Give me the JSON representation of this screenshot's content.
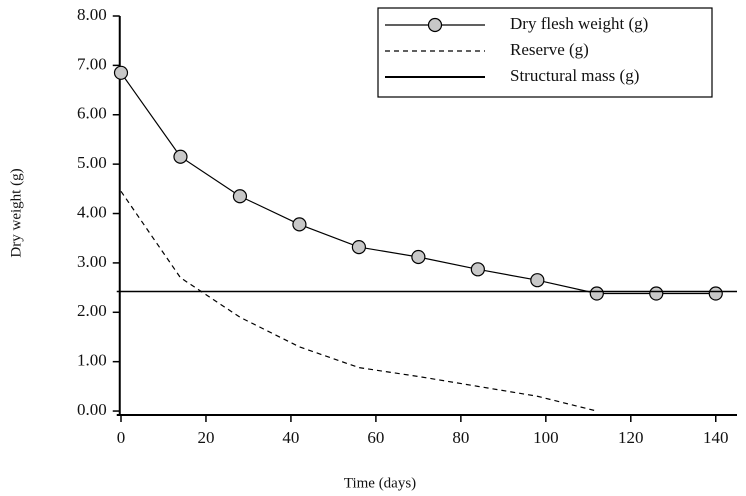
{
  "chart_data": {
    "type": "line",
    "xlabel": "Time (days)",
    "ylabel": "Dry weight (g)",
    "series": [
      {
        "name": "Dry flesh weight (g)",
        "color": "#000000",
        "marker": "circle",
        "marker_color": "#c8c8c8",
        "style": "solid",
        "x": [
          0,
          14,
          28,
          42,
          56,
          70,
          84,
          98,
          112,
          126,
          140
        ],
        "values": [
          6.85,
          5.15,
          4.35,
          3.78,
          3.32,
          3.12,
          2.87,
          2.65,
          2.38,
          2.38,
          2.38
        ]
      },
      {
        "name": "Reserve (g)",
        "color": "#000000",
        "style": "dashed",
        "x": [
          0,
          14,
          28,
          42,
          56,
          70,
          84,
          98,
          112
        ],
        "values": [
          4.45,
          2.7,
          1.9,
          1.3,
          0.88,
          0.7,
          0.5,
          0.3,
          0
        ]
      },
      {
        "name": "Structural mass (g)",
        "color": "#000000",
        "style": "solid",
        "x": [
          -1,
          145
        ],
        "values": [
          2.42,
          2.42
        ]
      }
    ],
    "xlim": [
      -1,
      145
    ],
    "xticks": [
      0,
      20,
      40,
      60,
      80,
      100,
      120,
      140
    ],
    "ylim": [
      -0.08,
      8
    ],
    "yticks": [
      {
        "value": 0,
        "label": "0.00"
      },
      {
        "value": 1,
        "label": "1.00"
      },
      {
        "value": 2,
        "label": "2.00"
      },
      {
        "value": 3,
        "label": "3.00"
      },
      {
        "value": 4,
        "label": "4.00"
      },
      {
        "value": 5,
        "label": "5.00"
      },
      {
        "value": 6,
        "label": "6.00"
      },
      {
        "value": 7,
        "label": "7.00"
      },
      {
        "value": 8,
        "label": "8.00"
      }
    ],
    "legend": "upper right"
  }
}
